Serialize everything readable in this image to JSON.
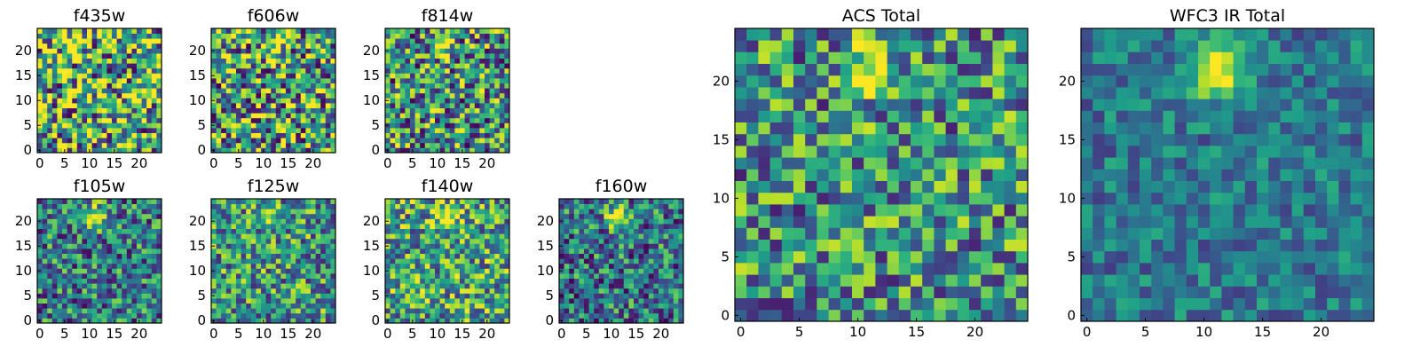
{
  "chart_data": {
    "type": "heatmap",
    "colormap": "viridis",
    "grid": false,
    "image_size": [
      25,
      25
    ],
    "panels": [
      {
        "key": "f435w",
        "title": "f435w",
        "xticks": [
          "0",
          "5",
          "10",
          "15",
          "20"
        ],
        "yticks": [
          "0",
          "5",
          "10",
          "15",
          "20"
        ],
        "xlim": [
          0,
          24
        ],
        "ylim": [
          0,
          24
        ],
        "peak": [
          11,
          21
        ],
        "peak_strength": 0,
        "noise": 0.6,
        "baseline": 0.62,
        "seed": 11
      },
      {
        "key": "f606w",
        "title": "f606w",
        "xticks": [
          "0",
          "5",
          "10",
          "15",
          "20"
        ],
        "yticks": [
          "0",
          "5",
          "10",
          "15",
          "20"
        ],
        "xlim": [
          0,
          24
        ],
        "ylim": [
          0,
          24
        ],
        "peak": [
          12,
          21
        ],
        "peak_strength": 0.45,
        "noise": 0.55,
        "baseline": 0.55,
        "seed": 23
      },
      {
        "key": "f814w",
        "title": "f814w",
        "xticks": [
          "0",
          "5",
          "10",
          "15",
          "20"
        ],
        "yticks": [
          "0",
          "5",
          "10",
          "15",
          "20"
        ],
        "xlim": [
          0,
          24
        ],
        "ylim": [
          0,
          24
        ],
        "peak": [
          11,
          21
        ],
        "peak_strength": 0.6,
        "noise": 0.5,
        "baseline": 0.5,
        "seed": 37
      },
      {
        "key": "f105w",
        "title": "f105w",
        "xticks": [
          "0",
          "5",
          "10",
          "15",
          "20"
        ],
        "yticks": [
          "0",
          "5",
          "10",
          "15",
          "20"
        ],
        "xlim": [
          0,
          24
        ],
        "ylim": [
          0,
          24
        ],
        "peak": [
          11,
          21
        ],
        "peak_strength": 0.65,
        "noise": 0.4,
        "baseline": 0.42,
        "seed": 41
      },
      {
        "key": "f125w",
        "title": "f125w",
        "xticks": [
          "0",
          "5",
          "10",
          "15",
          "20"
        ],
        "yticks": [
          "0",
          "5",
          "10",
          "15",
          "20"
        ],
        "xlim": [
          0,
          24
        ],
        "ylim": [
          0,
          24
        ],
        "peak": [
          11,
          21
        ],
        "peak_strength": 0.55,
        "noise": 0.42,
        "baseline": 0.52,
        "seed": 53
      },
      {
        "key": "f140w",
        "title": "f140w",
        "xticks": [
          "0",
          "5",
          "10",
          "15",
          "20"
        ],
        "yticks": [
          "0",
          "5",
          "10",
          "15",
          "20"
        ],
        "xlim": [
          0,
          24
        ],
        "ylim": [
          0,
          24
        ],
        "peak": [
          12,
          21
        ],
        "peak_strength": 0.5,
        "noise": 0.42,
        "baseline": 0.58,
        "seed": 67
      },
      {
        "key": "f160w",
        "title": "f160w",
        "xticks": [
          "0",
          "5",
          "10",
          "15",
          "20"
        ],
        "yticks": [
          "0",
          "5",
          "10",
          "15",
          "20"
        ],
        "xlim": [
          0,
          24
        ],
        "ylim": [
          0,
          24
        ],
        "peak": [
          11,
          21
        ],
        "peak_strength": 0.6,
        "noise": 0.4,
        "baseline": 0.4,
        "seed": 79
      },
      {
        "key": "acs_total",
        "title": "ACS Total",
        "xticks": [
          "0",
          "5",
          "10",
          "15",
          "20"
        ],
        "yticks": [
          "0",
          "5",
          "10",
          "15",
          "20"
        ],
        "xlim": [
          0,
          24
        ],
        "ylim": [
          0,
          24
        ],
        "peak": [
          11,
          21
        ],
        "peak_strength": 0.6,
        "noise": 0.42,
        "baseline": 0.5,
        "seed": 97
      },
      {
        "key": "wfc3_ir_total",
        "title": "WFC3 IR Total",
        "xticks": [
          "0",
          "5",
          "10",
          "15",
          "20"
        ],
        "yticks": [
          "0",
          "5",
          "10",
          "15",
          "20"
        ],
        "xlim": [
          0,
          24
        ],
        "ylim": [
          0,
          24
        ],
        "peak": [
          11,
          21
        ],
        "peak_strength": 0.75,
        "noise": 0.22,
        "baseline": 0.4,
        "seed": 113
      }
    ]
  }
}
